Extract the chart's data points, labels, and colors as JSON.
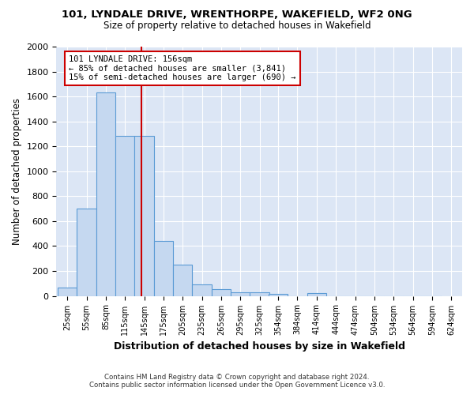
{
  "title1": "101, LYNDALE DRIVE, WRENTHORPE, WAKEFIELD, WF2 0NG",
  "title2": "Size of property relative to detached houses in Wakefield",
  "xlabel": "Distribution of detached houses by size in Wakefield",
  "ylabel": "Number of detached properties",
  "footnote1": "Contains HM Land Registry data © Crown copyright and database right 2024.",
  "footnote2": "Contains public sector information licensed under the Open Government Licence v3.0.",
  "annotation_line1": "101 LYNDALE DRIVE: 156sqm",
  "annotation_line2": "← 85% of detached houses are smaller (3,841)",
  "annotation_line3": "15% of semi-detached houses are larger (690) →",
  "bin_edges": [
    25,
    55,
    85,
    115,
    145,
    175,
    205,
    235,
    265,
    295,
    325,
    354,
    384,
    414,
    444,
    474,
    504,
    534,
    564,
    594,
    624
  ],
  "values": [
    65,
    700,
    1630,
    1285,
    1285,
    440,
    250,
    90,
    55,
    30,
    30,
    15,
    0,
    20,
    0,
    0,
    0,
    0,
    0,
    0
  ],
  "bar_color": "#c5d8f0",
  "bar_edge_color": "#5b9bd5",
  "red_line_x": 156,
  "annotation_box_color": "#ffffff",
  "annotation_box_edge": "#cc0000",
  "red_line_color": "#cc0000",
  "plot_bg_color": "#dce6f5",
  "fig_bg_color": "#ffffff",
  "ylim": [
    0,
    2000
  ],
  "yticks": [
    0,
    200,
    400,
    600,
    800,
    1000,
    1200,
    1400,
    1600,
    1800,
    2000
  ]
}
